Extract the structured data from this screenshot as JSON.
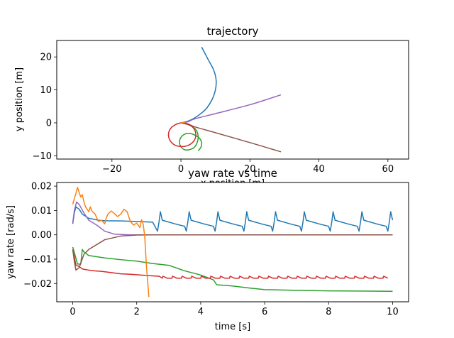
{
  "colors": {
    "c0": "#1f77b4",
    "c1": "#ff7f0e",
    "c2": "#2ca02c",
    "c3": "#d62728",
    "c4": "#9467bd",
    "c5": "#8c564b"
  },
  "chart_data": [
    {
      "type": "line",
      "title": "trajectory",
      "xlabel": "x position [m]",
      "ylabel": "y position [m]",
      "xlim": [
        -36,
        66
      ],
      "ylim": [
        -11,
        25
      ],
      "xticks": [
        -20,
        0,
        20,
        40,
        60
      ],
      "yticks": [
        -10,
        0,
        10,
        20
      ],
      "grid": false,
      "series": [
        {
          "color": "c0",
          "points": [
            [
              0,
              0
            ],
            [
              2,
              0.5
            ],
            [
              4,
              1.5
            ],
            [
              6,
              3
            ],
            [
              7.5,
              4.5
            ],
            [
              9,
              7
            ],
            [
              10,
              10
            ],
            [
              10.2,
              13
            ],
            [
              9.5,
              16
            ],
            [
              8,
              19
            ],
            [
              6,
              23
            ]
          ]
        },
        {
          "color": "c4",
          "points": [
            [
              0,
              0
            ],
            [
              2,
              0.3
            ],
            [
              4,
              1.2
            ],
            [
              10,
              2.8
            ],
            [
              20,
              5.5
            ],
            [
              29,
              8.5
            ]
          ]
        },
        {
          "color": "c5",
          "points": [
            [
              0,
              0
            ],
            [
              2,
              -0.3
            ],
            [
              4,
              -1.2
            ],
            [
              10,
              -3
            ],
            [
              20,
              -6
            ],
            [
              29,
              -8.8
            ]
          ]
        },
        {
          "color": "c2",
          "points": [
            [
              0,
              0
            ],
            [
              1.6,
              -0.4
            ],
            [
              3,
              -1
            ],
            [
              4.2,
              -1.9
            ],
            [
              4.8,
              -3
            ],
            [
              5,
              -4.5
            ],
            [
              4.7,
              -6
            ],
            [
              3.9,
              -7.4
            ],
            [
              2.6,
              -8.1
            ],
            [
              1.2,
              -8.2
            ],
            [
              0.1,
              -7.4
            ],
            [
              -0.4,
              -6.1
            ],
            [
              -0.1,
              -4.6
            ],
            [
              1,
              -3.5
            ],
            [
              2.5,
              -3.2
            ],
            [
              4,
              -3.7
            ],
            [
              5.3,
              -4.6
            ],
            [
              6,
              -6
            ],
            [
              5.8,
              -7.4
            ],
            [
              5,
              -8.5
            ]
          ]
        },
        {
          "color": "c3",
          "points": [
            [
              0,
              0
            ],
            [
              2.4,
              -0.6
            ],
            [
              3.9,
              -2
            ],
            [
              4.3,
              -4
            ],
            [
              3.6,
              -5.7
            ],
            [
              2,
              -6.9
            ],
            [
              0,
              -7.2
            ],
            [
              -2,
              -6.6
            ],
            [
              -3.3,
              -5.1
            ],
            [
              -3.6,
              -3.3
            ],
            [
              -2.9,
              -1.6
            ],
            [
              -1.3,
              -0.4
            ],
            [
              0,
              0
            ]
          ]
        },
        {
          "color": "c1",
          "points": [
            [
              0,
              0
            ],
            [
              0.6,
              0.05
            ],
            [
              1.2,
              0.1
            ]
          ]
        }
      ]
    },
    {
      "type": "line",
      "title": "yaw rate vs time",
      "xlabel": "time [s]",
      "ylabel": "yaw rate [rad/s]",
      "xlim": [
        -0.5,
        10.5
      ],
      "ylim": [
        -0.0275,
        0.0215
      ],
      "xticks": [
        0,
        2,
        4,
        6,
        8,
        10
      ],
      "yticks": [
        -0.02,
        -0.01,
        0.0,
        0.01,
        0.02
      ],
      "ytick_labels": [
        "−0.02",
        "−0.01",
        "0.00",
        "0.01",
        "0.02"
      ],
      "grid": false,
      "series": [
        {
          "color": "c0",
          "generator": "sawtooth_blue"
        },
        {
          "color": "c2",
          "points": [
            [
              0,
              -0.005
            ],
            [
              0.15,
              -0.012
            ],
            [
              0.25,
              -0.012
            ],
            [
              0.3,
              -0.006
            ],
            [
              0.35,
              -0.007
            ],
            [
              0.5,
              -0.0085
            ],
            [
              1,
              -0.0095
            ],
            [
              1.5,
              -0.0102
            ],
            [
              2,
              -0.0108
            ],
            [
              2.5,
              -0.0118
            ],
            [
              3,
              -0.0125
            ],
            [
              3.5,
              -0.0148
            ],
            [
              4,
              -0.0165
            ],
            [
              4.4,
              -0.0185
            ],
            [
              4.5,
              -0.0205
            ],
            [
              5,
              -0.021
            ],
            [
              5.5,
              -0.0218
            ],
            [
              6,
              -0.0225
            ],
            [
              7,
              -0.0228
            ],
            [
              8,
              -0.023
            ],
            [
              9,
              -0.0231
            ],
            [
              10,
              -0.0232
            ]
          ]
        },
        {
          "color": "c3",
          "generator": "sawtooth_red"
        },
        {
          "color": "c4",
          "points": [
            [
              0,
              0.005
            ],
            [
              0.05,
              0.01
            ],
            [
              0.12,
              0.0135
            ],
            [
              0.2,
              0.0125
            ],
            [
              0.35,
              0.009
            ],
            [
              0.5,
              0.006
            ],
            [
              0.75,
              0.004
            ],
            [
              1,
              0.0015
            ],
            [
              1.3,
              0.0003
            ],
            [
              1.8,
              0
            ],
            [
              10,
              0
            ]
          ]
        },
        {
          "color": "c5",
          "points": [
            [
              0,
              -0.006
            ],
            [
              0.05,
              -0.011
            ],
            [
              0.1,
              -0.0145
            ],
            [
              0.2,
              -0.0135
            ],
            [
              0.35,
              -0.008
            ],
            [
              0.5,
              -0.006
            ],
            [
              0.75,
              -0.004
            ],
            [
              1,
              -0.002
            ],
            [
              1.5,
              -0.0005
            ],
            [
              2,
              -0.0001
            ],
            [
              2.5,
              0
            ],
            [
              10,
              0
            ]
          ]
        },
        {
          "color": "c1",
          "points": [
            [
              0,
              0.0125
            ],
            [
              0.05,
              0.015
            ],
            [
              0.1,
              0.017
            ],
            [
              0.15,
              0.0195
            ],
            [
              0.2,
              0.0175
            ],
            [
              0.25,
              0.0155
            ],
            [
              0.3,
              0.0165
            ],
            [
              0.35,
              0.0135
            ],
            [
              0.4,
              0.0115
            ],
            [
              0.5,
              0.0095
            ],
            [
              0.55,
              0.0115
            ],
            [
              0.6,
              0.0098
            ],
            [
              0.7,
              0.0085
            ],
            [
              0.8,
              0.0055
            ],
            [
              0.9,
              0.006
            ],
            [
              1,
              0.0045
            ],
            [
              1.05,
              0.007
            ],
            [
              1.1,
              0.0085
            ],
            [
              1.2,
              0.0098
            ],
            [
              1.3,
              0.0088
            ],
            [
              1.4,
              0.0075
            ],
            [
              1.5,
              0.0085
            ],
            [
              1.6,
              0.0105
            ],
            [
              1.7,
              0.0095
            ],
            [
              1.75,
              0.0075
            ],
            [
              1.8,
              0.0055
            ],
            [
              1.9,
              0.004
            ],
            [
              2,
              0.0048
            ],
            [
              2.1,
              0.003
            ],
            [
              2.15,
              0.0062
            ],
            [
              2.2,
              0.0045
            ],
            [
              2.25,
              -0.0005
            ],
            [
              2.3,
              -0.012
            ],
            [
              2.38,
              -0.0255
            ]
          ]
        }
      ]
    }
  ]
}
